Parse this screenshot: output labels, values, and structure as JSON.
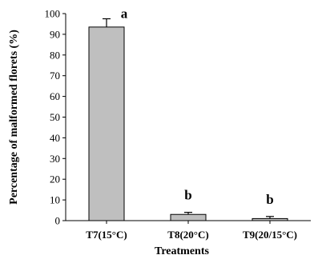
{
  "chart_data": {
    "type": "bar",
    "categories": [
      "T7(15°C)",
      "T8(20°C)",
      "T9(20/15°C)"
    ],
    "values": [
      93.5,
      3.0,
      1.0
    ],
    "errors": [
      4.0,
      1.0,
      1.0
    ],
    "significance": [
      "a",
      "b",
      "b"
    ],
    "xlabel": "Treatments",
    "ylabel": "Percentage of malformed florets (%)",
    "ylim": [
      0,
      100
    ],
    "yticks": [
      "0",
      "10",
      "20",
      "30",
      "40",
      "50",
      "60",
      "70",
      "80",
      "90",
      "100"
    ],
    "grid": false,
    "bar_color": "#bfbfbf"
  }
}
